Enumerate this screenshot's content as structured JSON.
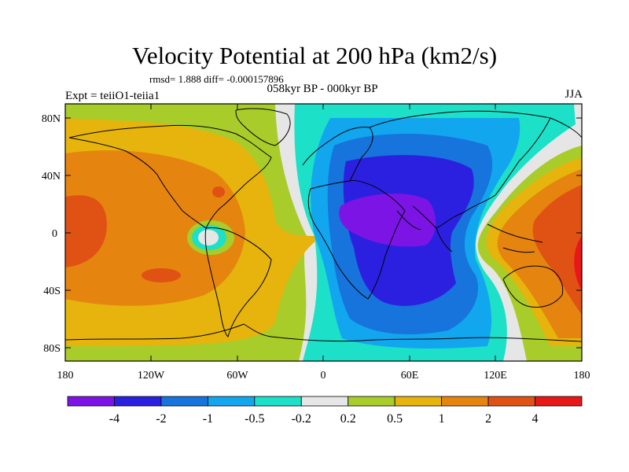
{
  "figure": {
    "title": "Velocity Potential at 200 hPa (km2/s)",
    "stats": "rmsd= 1.888 diff= -0.000157896",
    "experiment": "Expt = teiiO1-teiia1",
    "period": "058kyr BP - 000kyr BP",
    "season": "JJA"
  },
  "axes": {
    "x_ticks": [
      "180",
      "120W",
      "60W",
      "0",
      "60E",
      "120E",
      "180"
    ],
    "y_ticks": [
      "80N",
      "40N",
      "0",
      "40S",
      "80S"
    ]
  },
  "colorbar": {
    "labels": [
      "-4",
      "-2",
      "-1",
      "-0.5",
      "-0.2",
      "0.2",
      "0.5",
      "1",
      "2",
      "4"
    ],
    "colors": [
      "#7d14e6",
      "#2c20e0",
      "#1674dc",
      "#12a6ee",
      "#1de0c8",
      "#e6e6e6",
      "#a8cc2a",
      "#e6b40c",
      "#e68410",
      "#e05214",
      "#e81818"
    ]
  }
}
